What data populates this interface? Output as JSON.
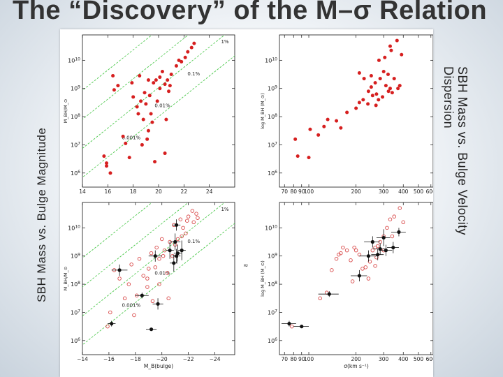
{
  "slide": {
    "title": "The “Discovery” of the M–σ Relation",
    "left_label": "SBH Mass vs. Bulge Magnitude",
    "right_label_line1": "SBH Mass vs. Bulge Velocity",
    "right_label_line2": "Dispersion"
  },
  "colors": {
    "filled": "#d61f1f",
    "open": "#d94a4a",
    "black": "#111111",
    "guide": "#4ec94e"
  },
  "chart_data": [
    {
      "type": "scatter",
      "title": "",
      "xlabel": "",
      "ylabel": "M_BH/M_⊙",
      "xlim": [
        14,
        26
      ],
      "ylim": [
        5.5,
        10.9
      ],
      "y_log": true,
      "xticks": [
        "14",
        "16",
        "18",
        "20",
        "22",
        "24"
      ],
      "yticks": [
        "10^6",
        "10^7",
        "10^8",
        "10^9",
        "10^10"
      ],
      "guide_labels": [
        "1%",
        "0.1%",
        "0.01%",
        "0.001%"
      ],
      "series": [
        {
          "marker": "filled-red",
          "points": [
            [
              16.4,
              9.45
            ],
            [
              16.5,
              8.95
            ],
            [
              16.8,
              9.1
            ],
            [
              17.9,
              9.2
            ],
            [
              18.5,
              9.45
            ],
            [
              18.9,
              8.85
            ],
            [
              18.0,
              8.7
            ],
            [
              18.3,
              8.35
            ],
            [
              18.6,
              8.55
            ],
            [
              19.0,
              8.45
            ],
            [
              19.3,
              8.75
            ],
            [
              19.6,
              9.2
            ],
            [
              19.8,
              9.3
            ],
            [
              20.1,
              9.0
            ],
            [
              20.3,
              9.6
            ],
            [
              20.5,
              9.15
            ],
            [
              20.1,
              9.4
            ],
            [
              19.2,
              9.3
            ],
            [
              20.7,
              9.3
            ],
            [
              21.0,
              9.5
            ],
            [
              21.4,
              9.8
            ],
            [
              21.6,
              10.0
            ],
            [
              22.1,
              10.1
            ],
            [
              22.3,
              10.3
            ],
            [
              22.6,
              10.45
            ],
            [
              22.8,
              10.6
            ],
            [
              21.8,
              9.95
            ],
            [
              19.4,
              8.1
            ],
            [
              19.5,
              7.8
            ],
            [
              19.2,
              7.5
            ],
            [
              19.1,
              7.2
            ],
            [
              18.8,
              7.9
            ],
            [
              17.2,
              7.3
            ],
            [
              17.4,
              7.05
            ],
            [
              15.7,
              6.6
            ],
            [
              15.9,
              6.35
            ],
            [
              15.9,
              6.25
            ],
            [
              18.7,
              7.0
            ],
            [
              20.8,
              8.9
            ],
            [
              20.9,
              9.1
            ],
            [
              19.9,
              8.55
            ],
            [
              18.4,
              8.1
            ],
            [
              17.7,
              6.55
            ],
            [
              20.5,
              6.7
            ],
            [
              16.2,
              6.0
            ],
            [
              19.7,
              6.4
            ],
            [
              20.6,
              7.9
            ]
          ]
        }
      ]
    },
    {
      "type": "scatter",
      "title": "",
      "xlabel": "",
      "ylabel": "log M_BH (M_⊙)",
      "xlim": [
        65,
        620
      ],
      "ylim": [
        5.5,
        10.9
      ],
      "x_log": true,
      "y_log": true,
      "xticks": [
        "70",
        "80",
        "90",
        "100",
        "200",
        "300",
        "400",
        "500",
        "600"
      ],
      "yticks": [
        "10^6",
        "10^7",
        "10^8",
        "10^9",
        "10^10"
      ],
      "series": [
        {
          "marker": "filled-red",
          "points": [
            [
              85,
              6.6
            ],
            [
              100,
              6.55
            ],
            [
              82,
              7.2
            ],
            [
              102,
              7.55
            ],
            [
              115,
              7.35
            ],
            [
              125,
              7.65
            ],
            [
              132,
              7.9
            ],
            [
              150,
              7.85
            ],
            [
              160,
              7.6
            ],
            [
              175,
              8.15
            ],
            [
              200,
              8.3
            ],
            [
              210,
              8.5
            ],
            [
              222,
              8.6
            ],
            [
              238,
              8.45
            ],
            [
              250,
              9.05
            ],
            [
              265,
              9.2
            ],
            [
              285,
              9.35
            ],
            [
              300,
              9.6
            ],
            [
              310,
              9.1
            ],
            [
              320,
              9.5
            ],
            [
              330,
              9.0
            ],
            [
              350,
              9.35
            ],
            [
              240,
              8.9
            ],
            [
              255,
              8.75
            ],
            [
              268,
              8.4
            ],
            [
              278,
              8.6
            ],
            [
              295,
              8.7
            ],
            [
              322,
              8.9
            ],
            [
              340,
              8.85
            ],
            [
              370,
              9.0
            ],
            [
              380,
              9.1
            ],
            [
              250,
              9.45
            ],
            [
              280,
              10.0
            ],
            [
              305,
              10.1
            ],
            [
              330,
              10.5
            ],
            [
              365,
              10.7
            ],
            [
              390,
              10.2
            ],
            [
              335,
              10.35
            ],
            [
              210,
              9.55
            ],
            [
              225,
              9.35
            ],
            [
              270,
              8.8
            ]
          ]
        }
      ]
    },
    {
      "type": "scatter",
      "title": "",
      "xlabel": "M_B(bulge)",
      "ylabel": "M_BH/M_⊙",
      "xlim": [
        -14,
        -25.5
      ],
      "ylim": [
        5.5,
        10.9
      ],
      "y_log": true,
      "xticks": [
        "−14",
        "−16",
        "−18",
        "−20",
        "−22",
        "−24"
      ],
      "yticks": [
        "10^6",
        "10^7",
        "10^8",
        "10^9",
        "10^10"
      ],
      "guide_labels": [
        "1%",
        "0.1%",
        "0.01%",
        "0.001%"
      ],
      "series": [
        {
          "marker": "open-red",
          "points": [
            [
              -15.9,
              6.5
            ],
            [
              -16.1,
              7.0
            ],
            [
              -17.2,
              7.5
            ],
            [
              -17.5,
              8.0
            ],
            [
              -17.7,
              8.7
            ],
            [
              -18.3,
              8.9
            ],
            [
              -18.6,
              8.3
            ],
            [
              -19.0,
              8.55
            ],
            [
              -18.9,
              7.9
            ],
            [
              -19.2,
              9.1
            ],
            [
              -19.5,
              8.6
            ],
            [
              -19.6,
              9.3
            ],
            [
              -19.8,
              8.9
            ],
            [
              -20.0,
              9.6
            ],
            [
              -20.2,
              9.2
            ],
            [
              -20.4,
              8.4
            ],
            [
              -20.5,
              7.5
            ],
            [
              -20.6,
              9.5
            ],
            [
              -20.8,
              9.0
            ],
            [
              -21.0,
              9.4
            ],
            [
              -21.2,
              9.6
            ],
            [
              -21.4,
              10.3
            ],
            [
              -21.6,
              10.0
            ],
            [
              -21.8,
              9.8
            ],
            [
              -22.0,
              10.4
            ],
            [
              -22.3,
              10.6
            ],
            [
              -22.6,
              10.5
            ],
            [
              -19.3,
              7.4
            ],
            [
              -18.1,
              7.6
            ],
            [
              -17.9,
              6.9
            ],
            [
              -16.8,
              8.2
            ],
            [
              -22.4,
              10.2
            ],
            [
              -20.9,
              10.1
            ],
            [
              -21.5,
              9.7
            ],
            [
              -21.9,
              10.25
            ],
            [
              -22.7,
              10.35
            ],
            [
              -18.9,
              8.2
            ],
            [
              -19.8,
              8.0
            ],
            [
              -20.1,
              9.0
            ],
            [
              -16.4,
              8.5
            ]
          ]
        },
        {
          "marker": "filled-black",
          "points": [
            [
              -16.2,
              6.6,
              0.3,
              0.1
            ],
            [
              -16.8,
              8.5,
              0.6,
              0.2
            ],
            [
              -18.5,
              7.6,
              0.5,
              0.1
            ],
            [
              -19.2,
              6.4,
              0.4,
              0.05
            ],
            [
              -19.5,
              9.0,
              0.5,
              0.2
            ],
            [
              -19.7,
              7.3,
              0.4,
              0.2
            ],
            [
              -21.0,
              9.5,
              0.4,
              0.3
            ],
            [
              -20.6,
              9.2,
              0.3,
              0.3
            ],
            [
              -20.9,
              8.75,
              0.3,
              0.3
            ],
            [
              -21.1,
              9.0,
              0.3,
              0.25
            ],
            [
              -21.2,
              9.1,
              0.3,
              0.3
            ],
            [
              -21.5,
              9.2,
              0.3,
              0.35
            ],
            [
              -21.1,
              10.1,
              0.3,
              0.2
            ]
          ]
        }
      ]
    },
    {
      "type": "scatter",
      "title": "",
      "xlabel": "σ(km s⁻¹)",
      "ylabel": "log M_BH (M_⊙)",
      "xlim": [
        65,
        620
      ],
      "ylim": [
        5.5,
        10.9
      ],
      "x_log": true,
      "y_log": true,
      "xticks": [
        "70",
        "80",
        "90",
        "100",
        "200",
        "300",
        "400",
        "500",
        "600"
      ],
      "yticks": [
        "10^6",
        "10^7",
        "10^8",
        "10^9",
        "10^10"
      ],
      "series": [
        {
          "marker": "open-red",
          "points": [
            [
              78,
              6.5
            ],
            [
              118,
              7.5
            ],
            [
              130,
              7.7
            ],
            [
              140,
              8.5
            ],
            [
              150,
              8.9
            ],
            [
              160,
              9.1
            ],
            [
              175,
              9.2
            ],
            [
              185,
              8.85
            ],
            [
              195,
              9.3
            ],
            [
              200,
              9.2
            ],
            [
              210,
              9.05
            ],
            [
              220,
              8.55
            ],
            [
              230,
              8.6
            ],
            [
              245,
              8.8
            ],
            [
              255,
              9.2
            ],
            [
              265,
              9.3
            ],
            [
              275,
              9.35
            ],
            [
              285,
              9.5
            ],
            [
              300,
              9.7
            ],
            [
              315,
              10.0
            ],
            [
              330,
              10.3
            ],
            [
              350,
              10.4
            ],
            [
              380,
              10.7
            ],
            [
              400,
              10.2
            ],
            [
              340,
              9.7
            ],
            [
              300,
              9.2
            ],
            [
              270,
              8.95
            ],
            [
              240,
              8.2
            ],
            [
              190,
              8.1
            ],
            [
              165,
              9.3
            ],
            [
              155,
              9.05
            ],
            [
              265,
              8.65
            ]
          ]
        },
        {
          "marker": "filled-black",
          "points": [
            [
              75,
              6.6,
              8,
              0.1
            ],
            [
              90,
              6.5,
              10,
              0.05
            ],
            [
              135,
              7.65,
              20,
              0.1
            ],
            [
              210,
              8.3,
              25,
              0.2
            ],
            [
              240,
              9.0,
              30,
              0.2
            ],
            [
              255,
              9.5,
              30,
              0.2
            ],
            [
              275,
              9.05,
              25,
              0.2
            ],
            [
              285,
              9.25,
              30,
              0.2
            ],
            [
              300,
              9.65,
              30,
              0.3
            ],
            [
              310,
              9.2,
              30,
              0.2
            ],
            [
              345,
              9.3,
              30,
              0.2
            ],
            [
              375,
              9.85,
              40,
              0.15
            ]
          ]
        }
      ]
    }
  ]
}
